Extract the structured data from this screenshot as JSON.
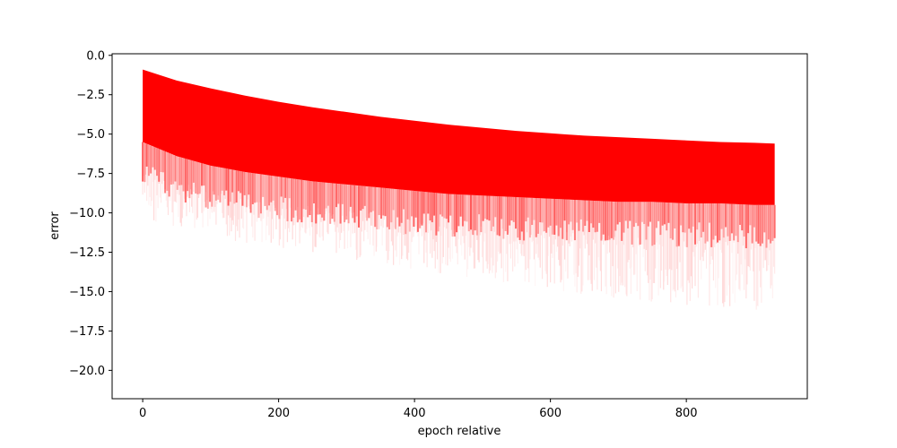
{
  "chart_data": {
    "type": "scatter",
    "title": "",
    "xlabel": "epoch relative",
    "ylabel": "error",
    "xlim": [
      -45,
      978
    ],
    "ylim": [
      -21.8,
      0.1
    ],
    "xticks": [
      0,
      200,
      400,
      600,
      800
    ],
    "xtick_labels": [
      "0",
      "200",
      "400",
      "600",
      "800"
    ],
    "yticks": [
      0.0,
      -2.5,
      -5.0,
      -7.5,
      -10.0,
      -12.5,
      -15.0,
      -17.5,
      -20.0
    ],
    "ytick_labels": [
      "0.0",
      "−2.5",
      "−5.0",
      "−7.5",
      "−10.0",
      "−12.5",
      "−15.0",
      "−17.5",
      "−20.0"
    ],
    "grid": false,
    "color": "#ff0000",
    "series": [
      {
        "x": [
          0,
          50,
          100,
          150,
          200,
          250,
          300,
          350,
          400,
          450,
          500,
          550,
          600,
          650,
          700,
          750,
          800,
          850,
          900,
          930
        ],
        "upper": [
          -0.9,
          -1.6,
          -2.1,
          -2.55,
          -2.95,
          -3.3,
          -3.6,
          -3.9,
          -4.15,
          -4.4,
          -4.6,
          -4.8,
          -4.95,
          -5.1,
          -5.2,
          -5.3,
          -5.4,
          -5.5,
          -5.55,
          -5.6
        ],
        "dense_lower": [
          -5.5,
          -6.4,
          -7.0,
          -7.4,
          -7.7,
          -8.0,
          -8.2,
          -8.4,
          -8.6,
          -8.8,
          -8.9,
          -9.0,
          -9.1,
          -9.2,
          -9.3,
          -9.3,
          -9.4,
          -9.4,
          -9.5,
          -9.5
        ],
        "sparse_lower": [
          -10.5,
          -11.0,
          -11.5,
          -12.0,
          -12.3,
          -12.6,
          -13.0,
          -13.3,
          -13.6,
          -14.0,
          -14.3,
          -14.6,
          -14.9,
          -15.2,
          -15.5,
          -15.7,
          -15.9,
          -16.0,
          -16.2,
          -16.3
        ]
      }
    ]
  }
}
